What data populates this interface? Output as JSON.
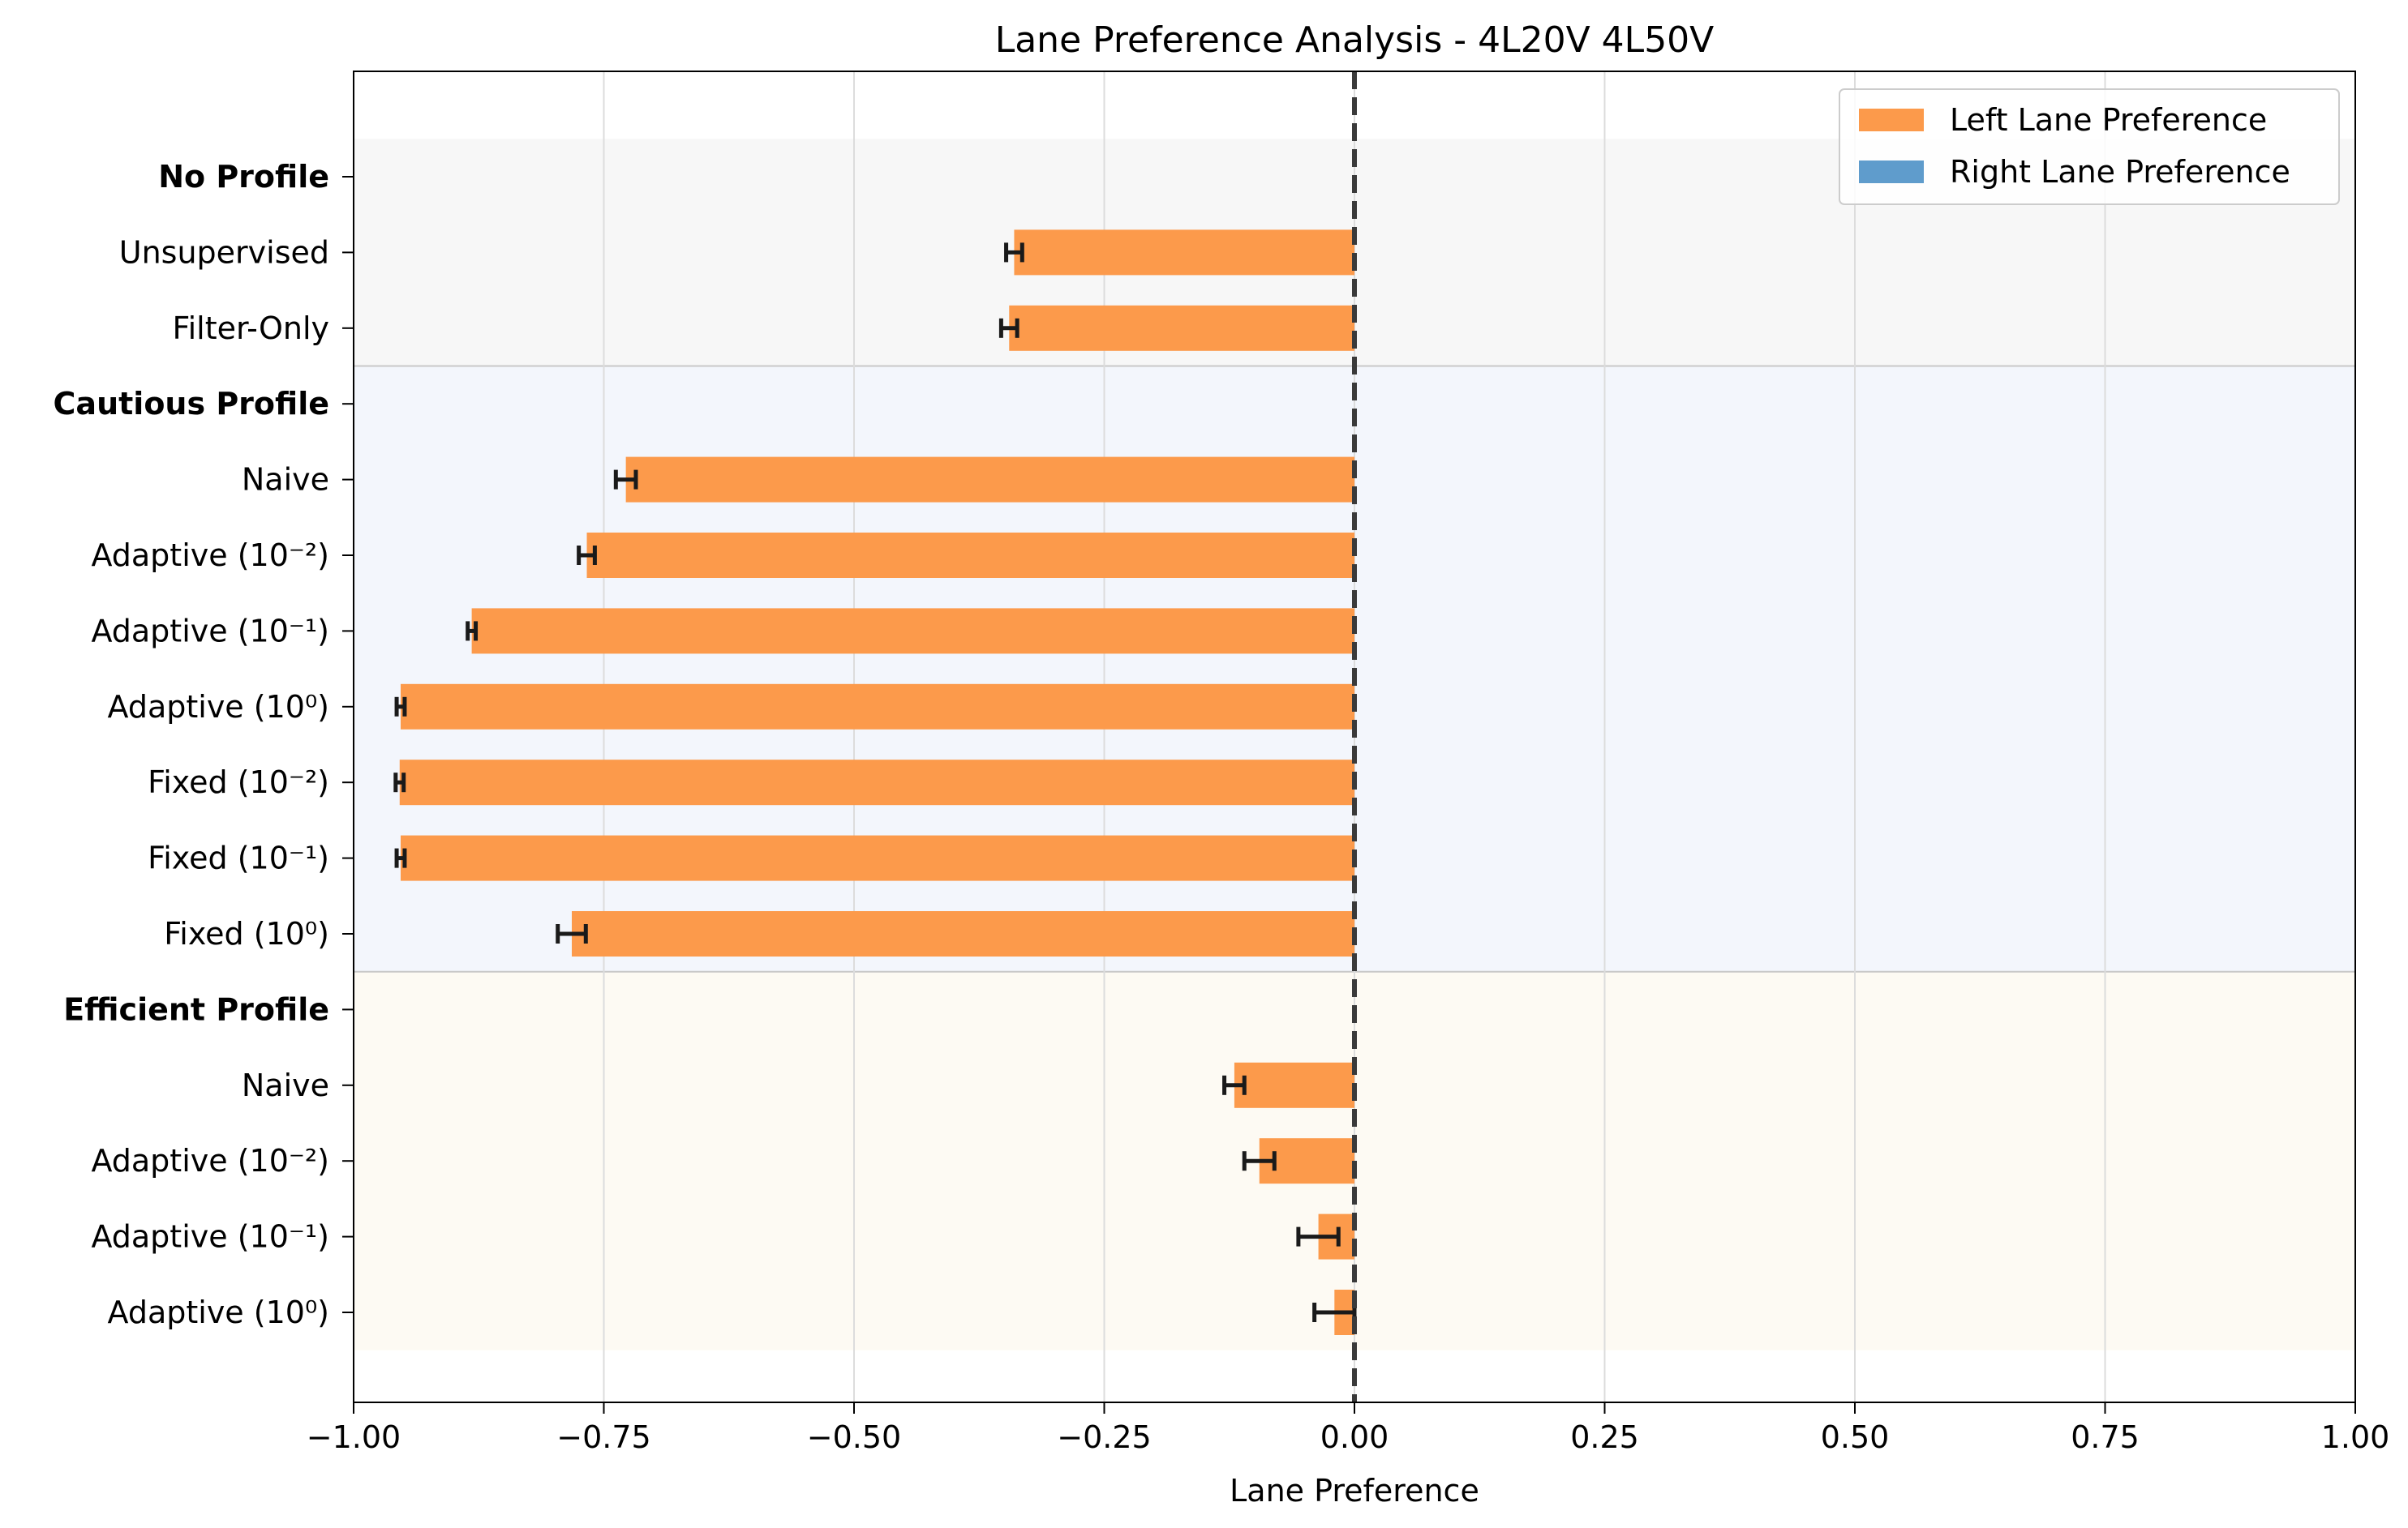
{
  "chart_data": {
    "type": "bar",
    "orientation": "horizontal",
    "title": "Lane Preference Analysis - 4L20V 4L50V",
    "xlabel": "Lane Preference",
    "ylabel": "",
    "xlim": [
      -1.0,
      1.0
    ],
    "xticks": [
      -1.0,
      -0.75,
      -0.5,
      -0.25,
      0.0,
      0.25,
      0.5,
      0.75,
      1.0
    ],
    "xtick_labels": [
      "−1.00",
      "−0.75",
      "−0.50",
      "−0.25",
      "0.00",
      "0.25",
      "0.50",
      "0.75",
      "1.00"
    ],
    "grid": true,
    "reference_line": {
      "x": 0.0,
      "style": "dashed"
    },
    "legend": {
      "position": "top-right",
      "entries": [
        {
          "label": "Left Lane Preference",
          "color": "#fc9a4b"
        },
        {
          "label": "Right Lane Preference",
          "color": "#5f9ccc"
        }
      ]
    },
    "rows": [
      {
        "label": "No Profile",
        "header": true
      },
      {
        "label": "Unsupervised",
        "value": -0.34,
        "error": 0.008
      },
      {
        "label": "Filter-Only",
        "value": -0.345,
        "error": 0.008
      },
      {
        "label": "Cautious Profile",
        "header": true
      },
      {
        "label": "Naive",
        "value": -0.728,
        "error": 0.01
      },
      {
        "label": "Adaptive (10⁻²)",
        "value": -0.767,
        "error": 0.008
      },
      {
        "label": "Adaptive (10⁻¹)",
        "value": -0.882,
        "error": 0.004
      },
      {
        "label": "Adaptive (10⁰)",
        "value": -0.953,
        "error": 0.004
      },
      {
        "label": "Fixed (10⁻²)",
        "value": -0.954,
        "error": 0.004
      },
      {
        "label": "Fixed (10⁻¹)",
        "value": -0.953,
        "error": 0.004
      },
      {
        "label": "Fixed (10⁰)",
        "value": -0.782,
        "error": 0.014
      },
      {
        "label": "Efficient Profile",
        "header": true
      },
      {
        "label": "Naive",
        "value": -0.12,
        "error": 0.01
      },
      {
        "label": "Adaptive (10⁻²)",
        "value": -0.095,
        "error": 0.015
      },
      {
        "label": "Adaptive (10⁻¹)",
        "value": -0.036,
        "error": 0.02
      },
      {
        "label": "Adaptive (10⁰)",
        "value": -0.02,
        "error": 0.02
      }
    ],
    "groups": [
      {
        "name": "No Profile",
        "first_row": 0,
        "last_row": 2,
        "color": "#f7f7f7"
      },
      {
        "name": "Cautious Profile",
        "first_row": 3,
        "last_row": 10,
        "color": "#f3f6fc"
      },
      {
        "name": "Efficient Profile",
        "first_row": 11,
        "last_row": 15,
        "color": "#fdfaf3"
      }
    ],
    "colors": {
      "left": "#fc9a4b",
      "right": "#5f9ccc",
      "error_bar": "#1a1a1a",
      "zero_line": "#3a3a3a",
      "grid": "#dcdcdc",
      "separator": "#c8c8c8"
    }
  }
}
